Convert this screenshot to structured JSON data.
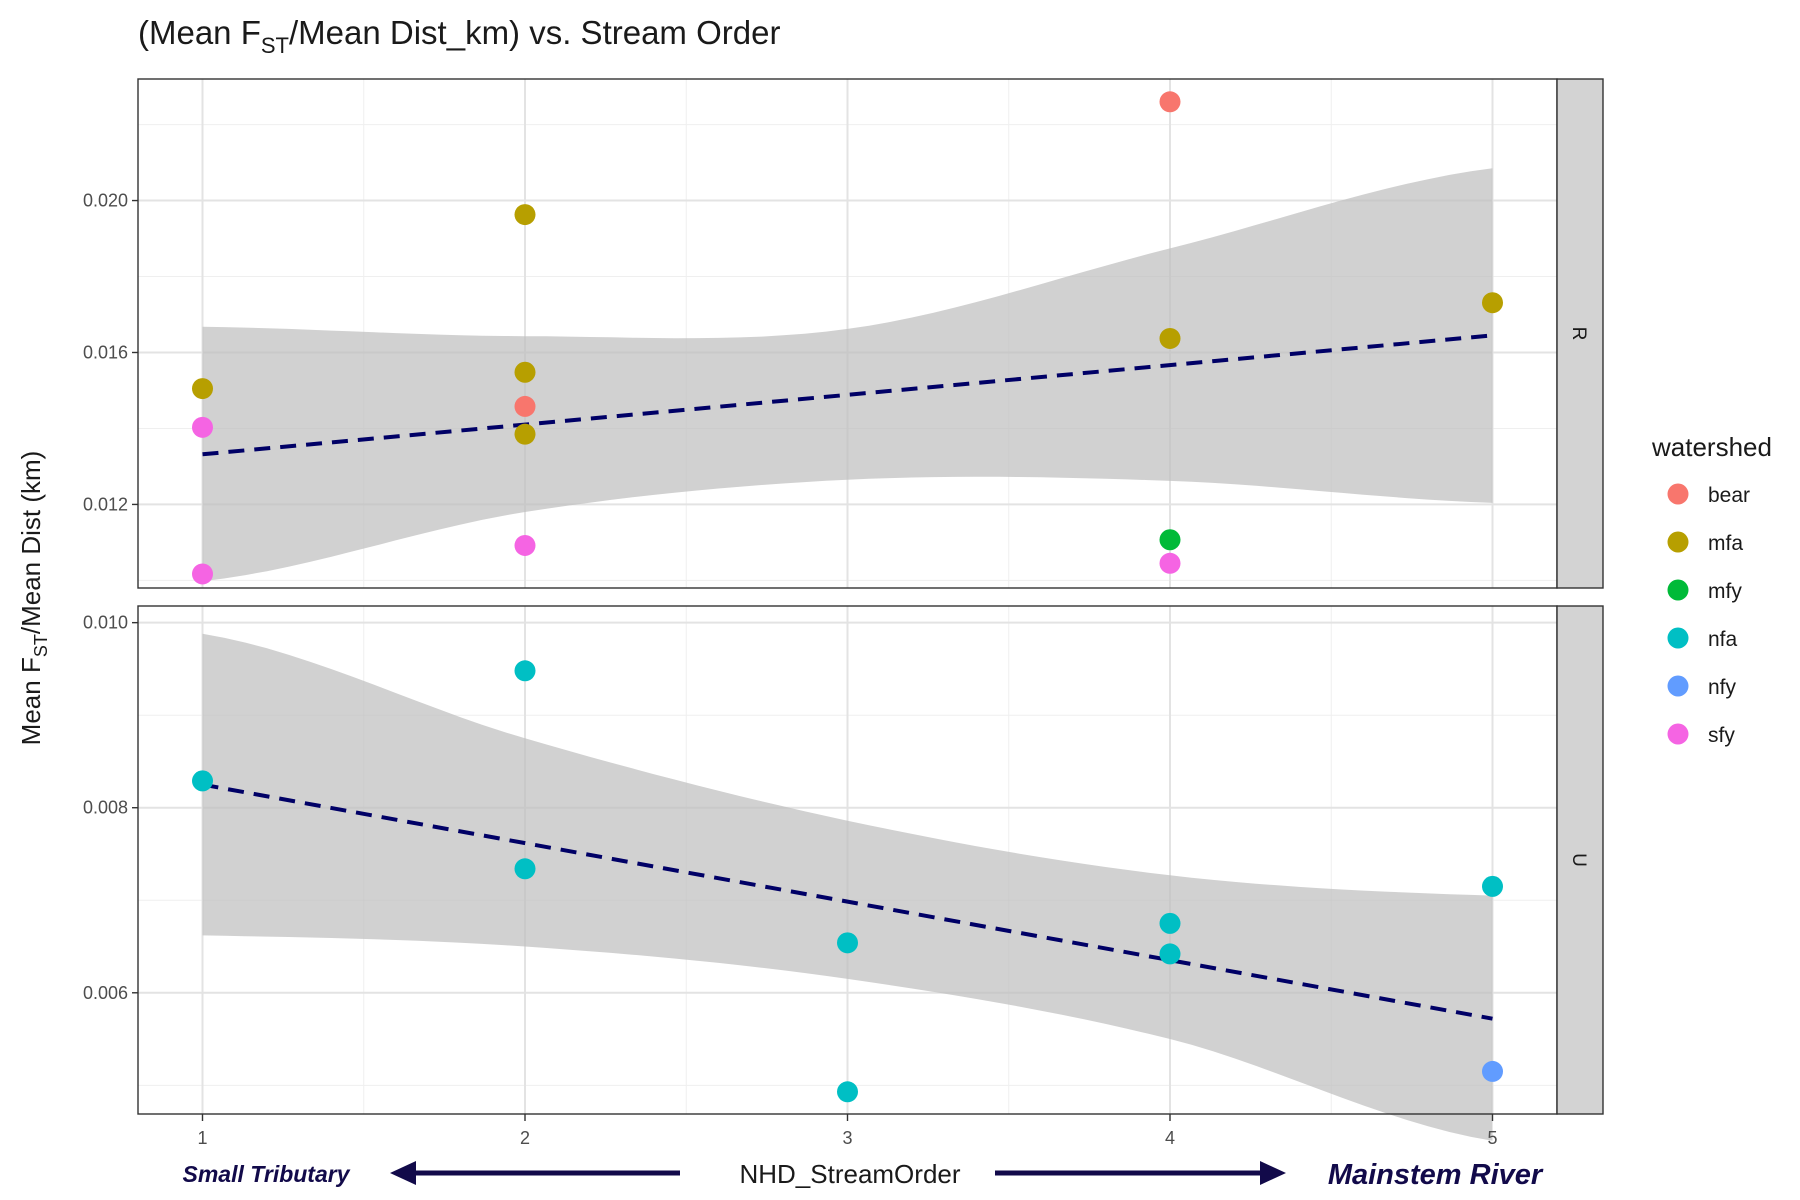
{
  "chart_data": {
    "type": "scatter",
    "title_prefix": "(Mean F",
    "title_sub": "ST",
    "title_suffix": "/Mean Dist_km) vs. Stream Order",
    "xlabel": "NHD_StreamOrder",
    "ylabel_prefix": "Mean F",
    "ylabel_sub": "ST",
    "ylabel_suffix": "/Mean Dist (km)",
    "xlim": [
      0.8,
      5.2
    ],
    "x_ticks": [
      1,
      2,
      3,
      4,
      5
    ],
    "grid": true,
    "legend": {
      "title": "watershed",
      "placement": "right",
      "entries": [
        {
          "label": "bear",
          "color": "#F8766D"
        },
        {
          "label": "mfa",
          "color": "#B79F00"
        },
        {
          "label": "mfy",
          "color": "#00BA38"
        },
        {
          "label": "nfa",
          "color": "#00BFC4"
        },
        {
          "label": "nfy",
          "color": "#619CFF"
        },
        {
          "label": "sfy",
          "color": "#F564E3"
        }
      ]
    },
    "fit_line_color": "#000066",
    "ribbon_color": "#bdbdbd",
    "annotations": {
      "left": "Small Tributary",
      "right": "Mainstem River",
      "arrow_color": "#120a4a"
    },
    "facets": [
      {
        "strip": "R",
        "ylim": [
          0.0098,
          0.0232
        ],
        "y_ticks": [
          0.012,
          0.016,
          0.02
        ],
        "y_tick_labels": [
          "0.012",
          "0.016",
          "0.020"
        ],
        "fit": {
          "x": [
            1,
            5
          ],
          "y": [
            0.01332,
            0.01645
          ]
        },
        "ribbon": {
          "x": [
            1,
            2,
            3,
            4,
            5
          ],
          "upper": [
            0.01668,
            0.01643,
            0.01662,
            0.01874,
            0.02085
          ],
          "lower": [
            0.00998,
            0.0118,
            0.01265,
            0.01262,
            0.01204
          ]
        },
        "points": [
          {
            "x": 4,
            "y": 0.0226,
            "watershed": "bear"
          },
          {
            "x": 2,
            "y": 0.01458,
            "watershed": "bear"
          },
          {
            "x": 2,
            "y": 0.01963,
            "watershed": "mfa"
          },
          {
            "x": 1,
            "y": 0.01505,
            "watershed": "mfa"
          },
          {
            "x": 2,
            "y": 0.01548,
            "watershed": "mfa"
          },
          {
            "x": 2,
            "y": 0.01385,
            "watershed": "mfa"
          },
          {
            "x": 4,
            "y": 0.01637,
            "watershed": "mfa"
          },
          {
            "x": 5,
            "y": 0.01731,
            "watershed": "mfa"
          },
          {
            "x": 4,
            "y": 0.01107,
            "watershed": "mfy"
          },
          {
            "x": 1,
            "y": 0.01403,
            "watershed": "sfy"
          },
          {
            "x": 2,
            "y": 0.01092,
            "watershed": "sfy"
          },
          {
            "x": 1,
            "y": 0.01017,
            "watershed": "sfy"
          },
          {
            "x": 4,
            "y": 0.01045,
            "watershed": "sfy"
          }
        ]
      },
      {
        "strip": "U",
        "ylim": [
          0.00469,
          0.01018
        ],
        "y_ticks": [
          0.006,
          0.008,
          0.01
        ],
        "y_tick_labels": [
          "0.006",
          "0.008",
          "0.010"
        ],
        "fit": {
          "x": [
            1,
            5
          ],
          "y": [
            0.00825,
            0.00572
          ]
        },
        "ribbon": {
          "x": [
            1,
            2,
            3,
            4,
            5
          ],
          "upper": [
            0.00988,
            0.00875,
            0.00786,
            0.00727,
            0.00705
          ],
          "lower": [
            0.00662,
            0.0065,
            0.00615,
            0.0055,
            0.0044
          ]
        },
        "points": [
          {
            "x": 1,
            "y": 0.00829,
            "watershed": "nfa"
          },
          {
            "x": 2,
            "y": 0.00948,
            "watershed": "nfa"
          },
          {
            "x": 2,
            "y": 0.00734,
            "watershed": "nfa"
          },
          {
            "x": 3,
            "y": 0.00654,
            "watershed": "nfa"
          },
          {
            "x": 3,
            "y": 0.00493,
            "watershed": "nfa"
          },
          {
            "x": 4,
            "y": 0.00675,
            "watershed": "nfa"
          },
          {
            "x": 4,
            "y": 0.00642,
            "watershed": "nfa"
          },
          {
            "x": 5,
            "y": 0.00715,
            "watershed": "nfa"
          },
          {
            "x": 5,
            "y": 0.00515,
            "watershed": "nfy"
          }
        ]
      }
    ]
  }
}
